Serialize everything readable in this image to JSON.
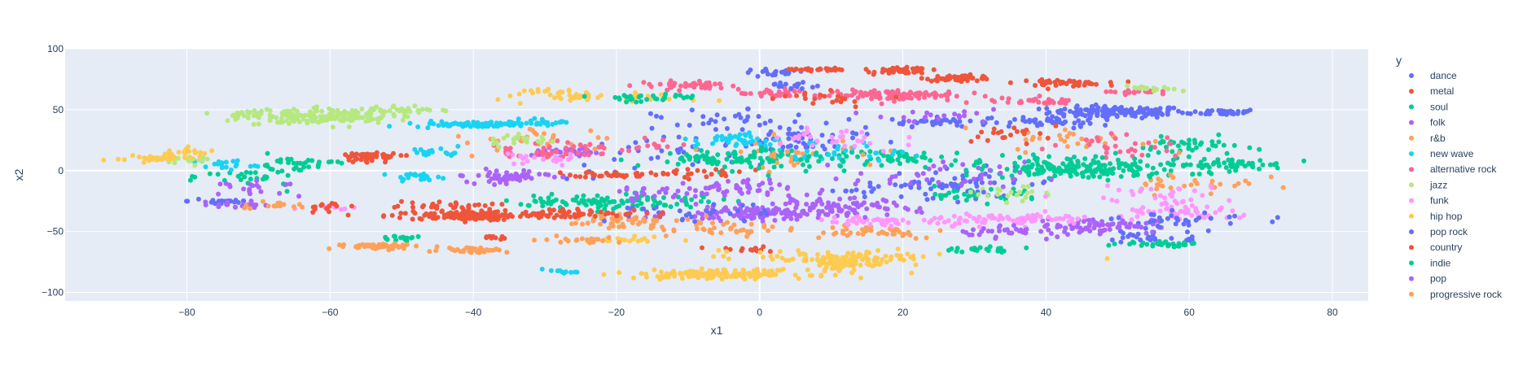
{
  "chart_data": {
    "type": "scatter",
    "title": "",
    "xlabel": "x1",
    "ylabel": "x2",
    "xlim": [
      -97,
      85
    ],
    "ylim": [
      -107,
      100
    ],
    "xticks": [
      -80,
      -60,
      -40,
      -20,
      0,
      20,
      40,
      60,
      80
    ],
    "yticks": [
      -100,
      -50,
      0,
      50,
      100
    ],
    "grid": true,
    "legend": {
      "title": "y",
      "placement": "right"
    },
    "series": [
      {
        "name": "dance",
        "color": "#636efa",
        "clusters": [
          [
            50,
            48,
            8,
            4,
            130
          ],
          [
            65,
            48,
            4,
            2,
            40
          ],
          [
            25,
            40,
            6,
            3,
            40
          ],
          [
            5,
            25,
            8,
            10,
            60
          ],
          [
            30,
            -10,
            10,
            10,
            40
          ],
          [
            -15,
            10,
            10,
            15,
            30
          ],
          [
            -75,
            -25,
            4,
            3,
            20
          ],
          [
            55,
            -55,
            8,
            6,
            30
          ],
          [
            2,
            80,
            4,
            3,
            20
          ]
        ]
      },
      {
        "name": "metal",
        "color": "#ef553b",
        "clusters": [
          [
            20,
            82,
            3,
            2,
            60
          ],
          [
            28,
            76,
            4,
            2,
            50
          ],
          [
            42,
            72,
            5,
            2,
            50
          ],
          [
            -40,
            -37,
            10,
            3,
            120
          ],
          [
            -20,
            -3,
            5,
            2,
            40
          ],
          [
            -55,
            12,
            4,
            2,
            40
          ],
          [
            -44,
            -30,
            6,
            4,
            40
          ],
          [
            8,
            83,
            3,
            1,
            30
          ],
          [
            -2,
            -65,
            5,
            2,
            15
          ]
        ]
      },
      {
        "name": "soul",
        "color": "#00cc96",
        "clusters": [
          [
            45,
            0,
            12,
            5,
            120
          ],
          [
            65,
            5,
            7,
            4,
            60
          ],
          [
            20,
            10,
            10,
            6,
            60
          ],
          [
            -15,
            -25,
            10,
            5,
            50
          ],
          [
            -5,
            10,
            10,
            8,
            50
          ],
          [
            60,
            20,
            6,
            6,
            40
          ],
          [
            30,
            -20,
            8,
            5,
            30
          ],
          [
            -70,
            -5,
            6,
            8,
            30
          ]
        ]
      },
      {
        "name": "folk",
        "color": "#ab63fa",
        "clusters": [
          [
            0,
            -35,
            10,
            5,
            130
          ],
          [
            47,
            -45,
            7,
            5,
            70
          ],
          [
            -5,
            -15,
            8,
            6,
            50
          ],
          [
            25,
            -5,
            10,
            10,
            40
          ],
          [
            -35,
            -5,
            6,
            5,
            30
          ],
          [
            -73,
            -28,
            3,
            2,
            20
          ],
          [
            -27,
            15,
            4,
            3,
            30
          ]
        ]
      },
      {
        "name": "r&b",
        "color": "#FFA15A",
        "clusters": [
          [
            -10,
            -45,
            10,
            6,
            40
          ],
          [
            15,
            -50,
            10,
            5,
            40
          ],
          [
            -30,
            25,
            10,
            10,
            30
          ],
          [
            45,
            25,
            8,
            8,
            30
          ],
          [
            -20,
            -40,
            6,
            4,
            30
          ],
          [
            60,
            -10,
            8,
            8,
            30
          ],
          [
            5,
            15,
            10,
            10,
            30
          ]
        ]
      },
      {
        "name": "new wave",
        "color": "#19d3f3",
        "clusters": [
          [
            -40,
            38,
            7,
            2,
            80
          ],
          [
            -48,
            -5,
            3,
            2,
            20
          ],
          [
            -45,
            15,
            3,
            3,
            20
          ],
          [
            -3,
            25,
            5,
            5,
            40
          ],
          [
            -75,
            5,
            4,
            4,
            20
          ],
          [
            10,
            15,
            8,
            8,
            30
          ],
          [
            -28,
            -83,
            2,
            1,
            10
          ],
          [
            -30,
            40,
            4,
            2,
            20
          ]
        ]
      },
      {
        "name": "alternative rock",
        "color": "#FF6692",
        "clusters": [
          [
            18,
            62,
            8,
            4,
            100
          ],
          [
            -10,
            70,
            6,
            3,
            40
          ],
          [
            38,
            57,
            5,
            2,
            30
          ],
          [
            2,
            63,
            4,
            3,
            30
          ],
          [
            52,
            65,
            3,
            2,
            20
          ],
          [
            -30,
            15,
            6,
            5,
            30
          ],
          [
            50,
            20,
            8,
            8,
            30
          ],
          [
            -20,
            20,
            10,
            5,
            30
          ]
        ]
      },
      {
        "name": "jazz",
        "color": "#B6E880",
        "clusters": [
          [
            -60,
            45,
            7,
            5,
            140
          ],
          [
            -70,
            45,
            5,
            6,
            40
          ],
          [
            -50,
            50,
            4,
            3,
            30
          ],
          [
            -33,
            25,
            5,
            4,
            20
          ],
          [
            -80,
            10,
            3,
            3,
            15
          ],
          [
            35,
            -20,
            5,
            6,
            20
          ],
          [
            55,
            67,
            3,
            2,
            15
          ]
        ]
      },
      {
        "name": "funk",
        "color": "#FF97FF",
        "clusters": [
          [
            35,
            -40,
            10,
            4,
            80
          ],
          [
            60,
            -35,
            8,
            5,
            60
          ],
          [
            15,
            -42,
            6,
            3,
            40
          ],
          [
            10,
            25,
            8,
            10,
            30
          ],
          [
            -30,
            10,
            5,
            5,
            20
          ],
          [
            55,
            -20,
            10,
            6,
            30
          ],
          [
            -60,
            -30,
            3,
            2,
            10
          ]
        ]
      },
      {
        "name": "hip hop",
        "color": "#FECB52",
        "clusters": [
          [
            -5,
            -85,
            10,
            3,
            150
          ],
          [
            12,
            -75,
            6,
            5,
            110
          ],
          [
            10,
            -70,
            15,
            4,
            50
          ],
          [
            -20,
            60,
            10,
            3,
            40
          ],
          [
            -85,
            10,
            4,
            2,
            40
          ],
          [
            -80,
            15,
            3,
            3,
            20
          ],
          [
            -18,
            -57,
            5,
            2,
            20
          ],
          [
            -30,
            65,
            3,
            2,
            15
          ]
        ]
      },
      {
        "name": "pop rock",
        "color": "#636efa",
        "clusters": [
          [
            40,
            40,
            6,
            4,
            40
          ],
          [
            -10,
            -35,
            10,
            6,
            30
          ],
          [
            20,
            -15,
            10,
            6,
            30
          ],
          [
            60,
            -40,
            8,
            5,
            30
          ],
          [
            -5,
            40,
            8,
            8,
            30
          ],
          [
            5,
            70,
            3,
            2,
            15
          ]
        ]
      },
      {
        "name": "country",
        "color": "#EF553B",
        "clusters": [
          [
            -40,
            -38,
            5,
            2,
            40
          ],
          [
            -25,
            -35,
            8,
            3,
            50
          ],
          [
            -60,
            -30,
            3,
            3,
            15
          ],
          [
            -55,
            10,
            3,
            4,
            15
          ],
          [
            35,
            30,
            6,
            6,
            20
          ],
          [
            -8,
            -2,
            5,
            3,
            20
          ],
          [
            -37,
            -55,
            2,
            1,
            10
          ],
          [
            10,
            60,
            8,
            5,
            20
          ]
        ]
      },
      {
        "name": "indie",
        "color": "#00cc96",
        "clusters": [
          [
            -25,
            -25,
            8,
            4,
            50
          ],
          [
            0,
            10,
            10,
            8,
            50
          ],
          [
            45,
            5,
            10,
            8,
            70
          ],
          [
            55,
            -60,
            5,
            2,
            30
          ],
          [
            -65,
            5,
            5,
            5,
            30
          ],
          [
            -15,
            60,
            8,
            3,
            30
          ],
          [
            30,
            -65,
            5,
            2,
            20
          ],
          [
            -50,
            -55,
            3,
            2,
            15
          ]
        ]
      },
      {
        "name": "pop",
        "color": "#ab63fa",
        "clusters": [
          [
            10,
            -30,
            10,
            6,
            70
          ],
          [
            35,
            -50,
            8,
            4,
            40
          ],
          [
            -35,
            -5,
            5,
            4,
            30
          ],
          [
            -70,
            -15,
            5,
            5,
            20
          ],
          [
            25,
            45,
            8,
            5,
            20
          ],
          [
            -15,
            -20,
            6,
            5,
            20
          ]
        ]
      },
      {
        "name": "progressive rock",
        "color": "#FFA15A",
        "clusters": [
          [
            -53,
            -62,
            5,
            2,
            60
          ],
          [
            -40,
            -65,
            4,
            2,
            40
          ],
          [
            -25,
            -57,
            5,
            2,
            20
          ],
          [
            -2,
            -50,
            5,
            2,
            15
          ],
          [
            -68,
            -28,
            4,
            3,
            15
          ]
        ]
      }
    ]
  }
}
